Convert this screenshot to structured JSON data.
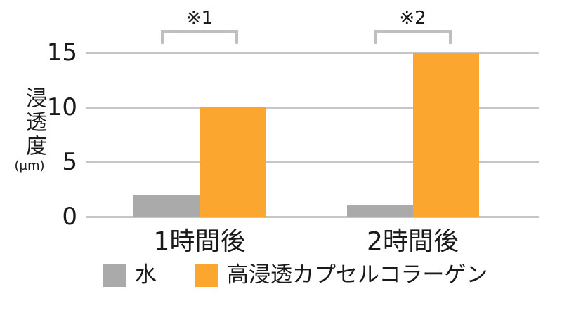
{
  "figure": {
    "background": "#ffffff"
  },
  "chart_data": {
    "type": "bar",
    "title": "",
    "ylabel": "浸透度",
    "ylabel_unit": "(μm)",
    "xlabel": "",
    "ylim": [
      0,
      15
    ],
    "yticks": [
      0,
      5,
      10,
      15
    ],
    "grid": true,
    "legend_position": "bottom",
    "categories": [
      "1時間後",
      "2時間後"
    ],
    "series": [
      {
        "name": "水",
        "color": "#aaaaaa",
        "values": [
          2,
          1
        ]
      },
      {
        "name": "高浸透カプセルコラーゲン",
        "color": "#faa62f",
        "values": [
          10,
          15
        ]
      }
    ],
    "annotations": [
      {
        "label": "※1",
        "group_index": 0
      },
      {
        "label": "※2",
        "group_index": 1
      }
    ],
    "colors": {
      "gridline": "#c6c6c6",
      "bracket": "#bfbfbf",
      "text": "#1a1a1a"
    }
  }
}
